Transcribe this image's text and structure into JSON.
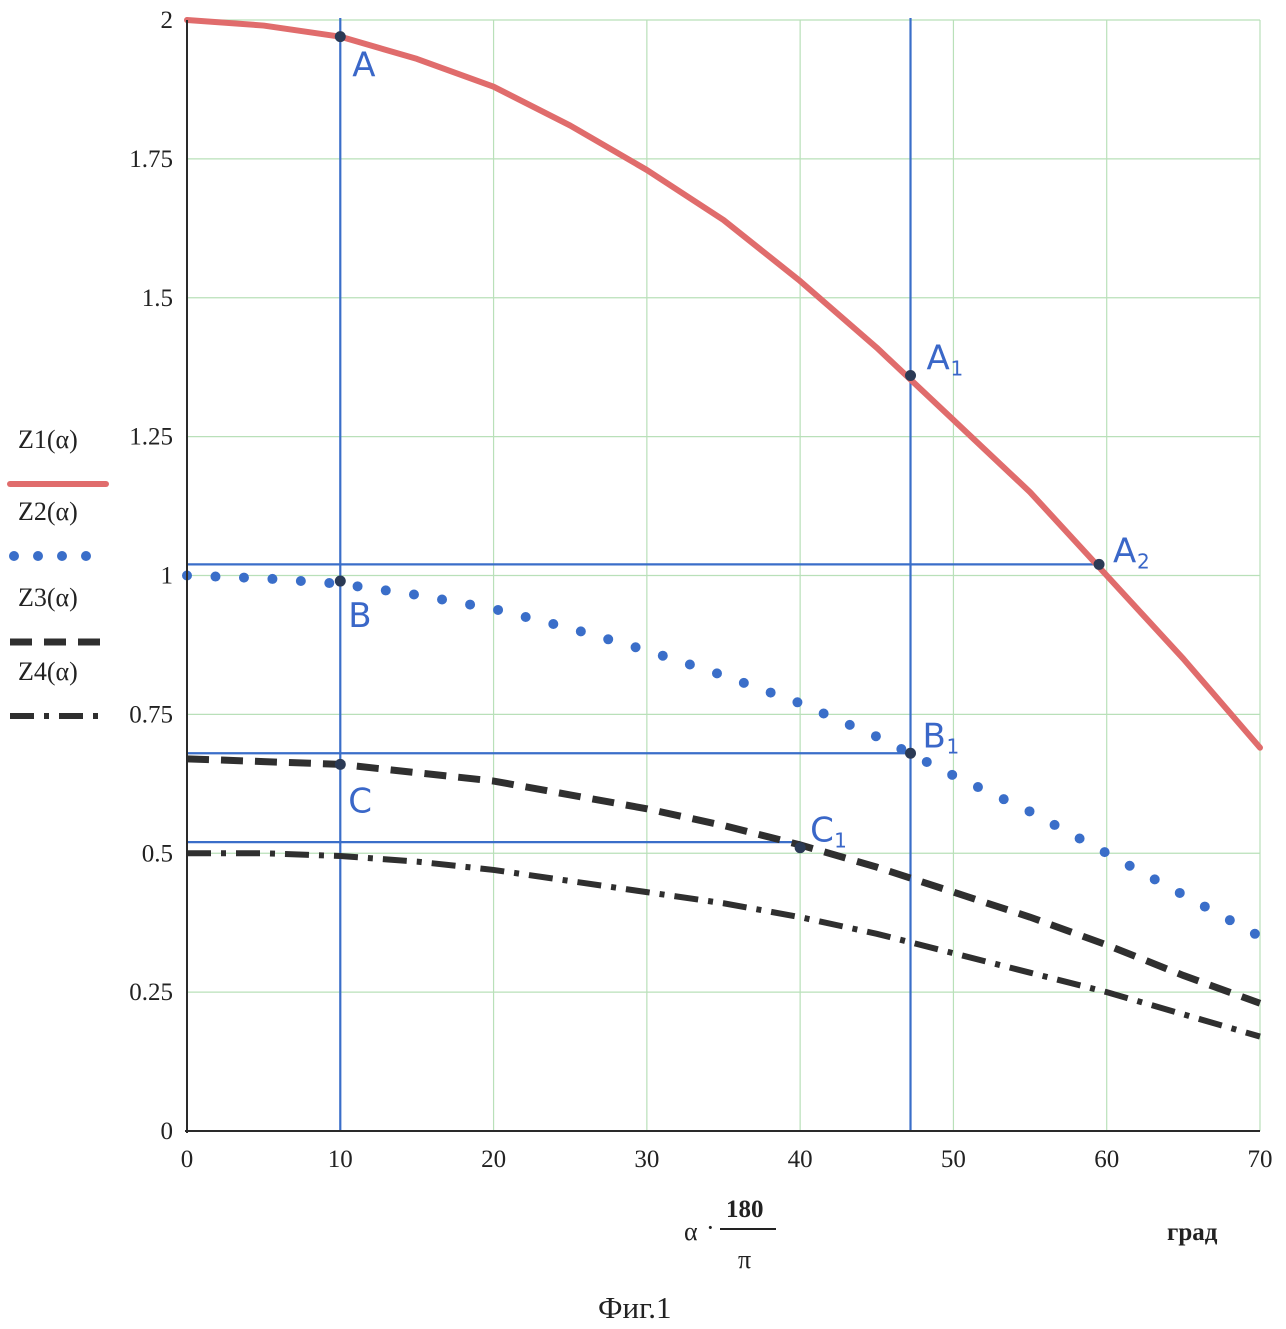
{
  "chart_data": {
    "type": "line",
    "x_ticks": [
      "0",
      "10",
      "20",
      "30",
      "40",
      "50",
      "60",
      "70"
    ],
    "y_ticks": [
      "0",
      "0.25",
      "0.5",
      "0.75",
      "1",
      "1.25",
      "1.5",
      "1.75",
      "2"
    ],
    "xlim": [
      0,
      70
    ],
    "ylim": [
      0,
      2
    ],
    "grid": true,
    "xlabel": {
      "prefix": "α",
      "numerator": "180",
      "denominator": "π",
      "unit": "град"
    },
    "caption": "Фиг.1",
    "legend_position": "left",
    "series": [
      {
        "name": "Z1(α)",
        "style": "solid",
        "color": "#e06c6c",
        "x": [
          0,
          5,
          10,
          15,
          20,
          25,
          30,
          35,
          40,
          45,
          50,
          55,
          60,
          65,
          70
        ],
        "y": [
          2.0,
          1.99,
          1.97,
          1.93,
          1.88,
          1.81,
          1.73,
          1.64,
          1.53,
          1.41,
          1.28,
          1.15,
          1.0,
          0.85,
          0.69
        ]
      },
      {
        "name": "Z2(α)",
        "style": "dotted",
        "color": "#3a6ec9",
        "x": [
          0,
          5,
          10,
          15,
          20,
          25,
          30,
          35,
          40,
          45,
          50,
          55,
          60,
          65,
          70
        ],
        "y": [
          1.0,
          0.995,
          0.985,
          0.965,
          0.94,
          0.905,
          0.865,
          0.82,
          0.77,
          0.71,
          0.64,
          0.575,
          0.5,
          0.425,
          0.35
        ]
      },
      {
        "name": "Z3(α)",
        "style": "dashed",
        "color": "#2f2f2f",
        "x": [
          0,
          5,
          10,
          15,
          20,
          25,
          30,
          35,
          40,
          45,
          50,
          55,
          60,
          65,
          70
        ],
        "y": [
          0.67,
          0.665,
          0.66,
          0.645,
          0.63,
          0.605,
          0.58,
          0.55,
          0.515,
          0.475,
          0.43,
          0.385,
          0.335,
          0.28,
          0.23
        ]
      },
      {
        "name": "Z4(α)",
        "style": "dashdot",
        "color": "#2f2f2f",
        "x": [
          0,
          5,
          10,
          15,
          20,
          25,
          30,
          35,
          40,
          45,
          50,
          55,
          60,
          65,
          70
        ],
        "y": [
          0.5,
          0.5,
          0.495,
          0.485,
          0.47,
          0.45,
          0.43,
          0.41,
          0.385,
          0.355,
          0.32,
          0.285,
          0.25,
          0.21,
          0.17
        ]
      }
    ],
    "reference_lines": [
      {
        "orientation": "vertical",
        "x": 10
      },
      {
        "orientation": "vertical",
        "x": 47.2
      },
      {
        "orientation": "horizontal",
        "y": 1.02,
        "x_from": 0,
        "x_to": 59.5
      },
      {
        "orientation": "horizontal",
        "y": 0.68,
        "x_from": 0,
        "x_to": 47.2
      },
      {
        "orientation": "horizontal",
        "y": 0.52,
        "x_from": 0,
        "x_to": 40
      }
    ],
    "points": [
      {
        "label": "A",
        "sub": "",
        "x": 10,
        "y": 1.97
      },
      {
        "label": "A",
        "sub": "1",
        "x": 47.2,
        "y": 1.36
      },
      {
        "label": "A",
        "sub": "2",
        "x": 59.5,
        "y": 1.02
      },
      {
        "label": "B",
        "sub": "",
        "x": 10,
        "y": 0.99
      },
      {
        "label": "B",
        "sub": "1",
        "x": 47.2,
        "y": 0.68
      },
      {
        "label": "C",
        "sub": "",
        "x": 10,
        "y": 0.66
      },
      {
        "label": "C",
        "sub": "1",
        "x": 40,
        "y": 0.51
      }
    ]
  }
}
